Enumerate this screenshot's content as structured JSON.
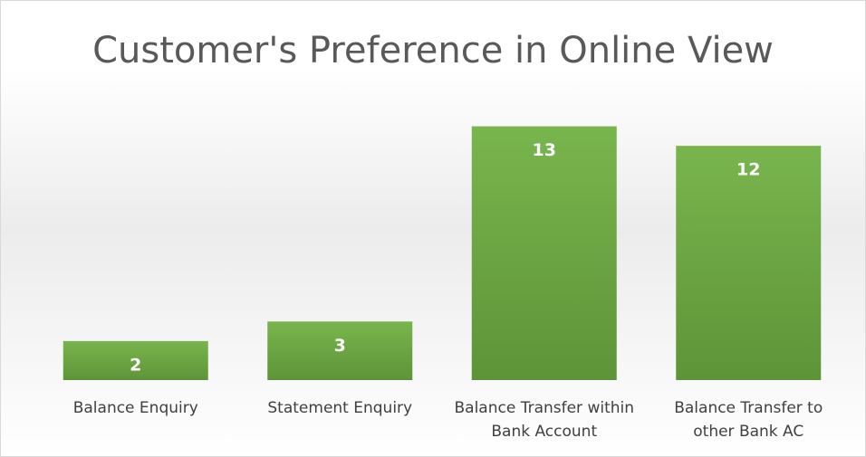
{
  "chart_data": {
    "type": "bar",
    "title": "Customer's Preference in Online View",
    "categories": [
      "Balance Enquiry",
      "Statement Enquiry",
      "Balance Transfer within Bank Account",
      "Balance Transfer to other Bank AC"
    ],
    "values": [
      2,
      3,
      13,
      12
    ],
    "color": "#70ad47",
    "ylim": [
      0,
      14
    ]
  }
}
